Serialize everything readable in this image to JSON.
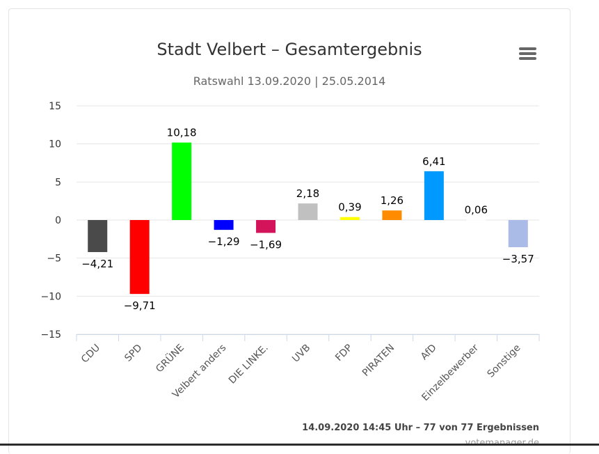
{
  "chart_data": {
    "type": "bar",
    "title": "Stadt Velbert – Gesamtergebnis",
    "subtitle": "Ratswahl 13.09.2020 | 25.05.2014",
    "categories": [
      "CDU",
      "SPD",
      "GRÜNE",
      "Velbert anders",
      "DIE LINKE.",
      "UVB",
      "FDP",
      "PIRATEN",
      "AfD",
      "Einzelbewerber",
      "Sonstige"
    ],
    "values": [
      -4.21,
      -9.71,
      10.18,
      -1.29,
      -1.69,
      2.18,
      0.39,
      1.26,
      6.41,
      0.06,
      -3.57
    ],
    "value_labels": [
      "−4,21",
      "−9,71",
      "10,18",
      "−1,29",
      "−1,69",
      "2,18",
      "0,39",
      "1,26",
      "6,41",
      "0,06",
      "−3,57"
    ],
    "colors": [
      "#4a4a4a",
      "#ff0000",
      "#00ff00",
      "#0000ff",
      "#d4145a",
      "#c0c0c0",
      "#ffff00",
      "#ff8c00",
      "#0099ff",
      "#ffffff",
      "#aabbe8"
    ],
    "ylim": [
      -15,
      15
    ],
    "yticks": [
      15,
      10,
      5,
      0,
      -5,
      -10,
      -15
    ],
    "ytick_labels": [
      "15",
      "10",
      "5",
      "0",
      "−5",
      "−10",
      "−15"
    ],
    "grid": true,
    "xlabel": "",
    "ylabel": ""
  },
  "credits": "14.09.2020 14:45 Uhr – 77 von 77 Ergebnissen",
  "source": "votemanager.de",
  "menu_icon": "hamburger-menu-icon"
}
